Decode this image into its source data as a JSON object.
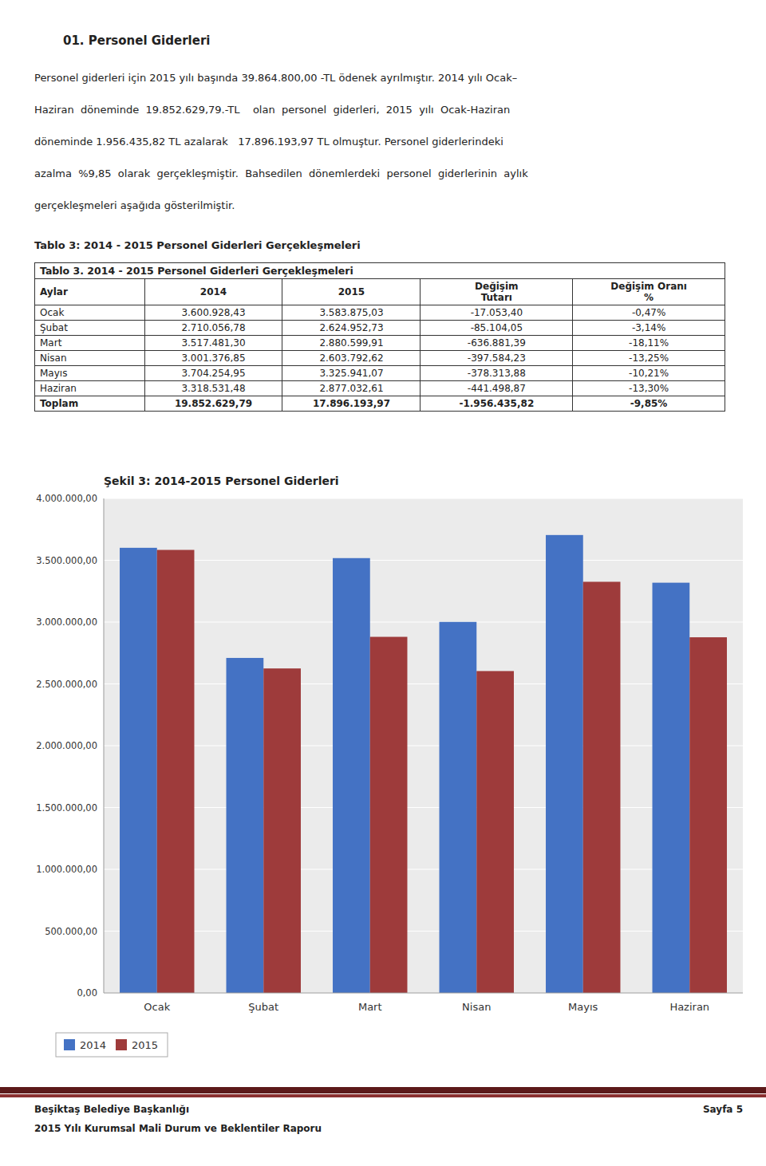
{
  "page_title": "01. Personel Giderleri",
  "paragraph": [
    "Personel giderleri için 2015 yılı başında 39.864.800,00 -TL ödenek ayrılmıştır. 2014 yılı Ocak–",
    "Haziran  döneminde  19.852.629,79.-TL    olan  personel  giderleri,  2015  yılı  Ocak-Haziran",
    "döneminde 1.956.435,82 TL azalarak   17.896.193,97 TL olmuştur. Personel giderlerindeki",
    "azalma  %9,85  olarak  gerçekleşmiştir.  Bahsedilen  dönemlerdeki  personel  giderlerinin  aylık",
    "gerçekleşmeleri aşağıda gösterilmiştir."
  ],
  "table": {
    "caption_outside": "Tablo 3: 2014 - 2015 Personel Giderleri Gerçekleşmeleri",
    "caption_inside": "Tablo 3. 2014 - 2015 Personel Giderleri Gerçekleşmeleri",
    "columns": [
      "Aylar",
      "2014",
      "2015",
      "Değişim\nTutarı",
      "Değişim Oranı\n%"
    ],
    "rows": [
      [
        "Ocak",
        "3.600.928,43",
        "3.583.875,03",
        "-17.053,40",
        "-0,47%"
      ],
      [
        "Şubat",
        "2.710.056,78",
        "2.624.952,73",
        "-85.104,05",
        "-3,14%"
      ],
      [
        "Mart",
        "3.517.481,30",
        "2.880.599,91",
        "-636.881,39",
        "-18,11%"
      ],
      [
        "Nisan",
        "3.001.376,85",
        "2.603.792,62",
        "-397.584,23",
        "-13,25%"
      ],
      [
        "Mayıs",
        "3.704.254,95",
        "3.325.941,07",
        "-378.313,88",
        "-10,21%"
      ],
      [
        "Haziran",
        "3.318.531,48",
        "2.877.032,61",
        "-441.498,87",
        "-13,30%"
      ],
      [
        "Toplam",
        "19.852.629,79",
        "17.896.193,97",
        "-1.956.435,82",
        "-9,85%"
      ]
    ]
  },
  "chart_data": {
    "type": "bar",
    "title": "Şekil 3: 2014-2015 Personel Giderleri",
    "categories": [
      "Ocak",
      "Şubat",
      "Mart",
      "Nisan",
      "Mayıs",
      "Haziran"
    ],
    "series": [
      {
        "name": "2014",
        "color": "#4472C4",
        "values": [
          3600928.43,
          2710056.78,
          3517481.3,
          3001376.85,
          3704254.95,
          3318531.48
        ]
      },
      {
        "name": "2015",
        "color": "#9E3B3B",
        "values": [
          3583875.03,
          2624952.73,
          2880599.91,
          2603792.62,
          3325941.07,
          2877032.61
        ]
      }
    ],
    "ylim": [
      0,
      4000000
    ],
    "yticks": [
      {
        "value": 0,
        "label": "0,00"
      },
      {
        "value": 500000,
        "label": "500.000,00"
      },
      {
        "value": 1000000,
        "label": "1.000.000,00"
      },
      {
        "value": 1500000,
        "label": "1.500.000,00"
      },
      {
        "value": 2000000,
        "label": "2.000.000,00"
      },
      {
        "value": 2500000,
        "label": "2.500.000,00"
      },
      {
        "value": 3000000,
        "label": "3.000.000,00"
      },
      {
        "value": 3500000,
        "label": "3.500.000,00"
      },
      {
        "value": 4000000,
        "label": "4.000.000,00"
      }
    ],
    "grid": true,
    "legend": "bottom"
  },
  "footer": {
    "left": "Beşiktaş Belediye Başkanlığı",
    "right": "Sayfa 5",
    "sub": "2015 Yılı Kurumsal Mali Durum ve Beklentiler Raporu"
  }
}
